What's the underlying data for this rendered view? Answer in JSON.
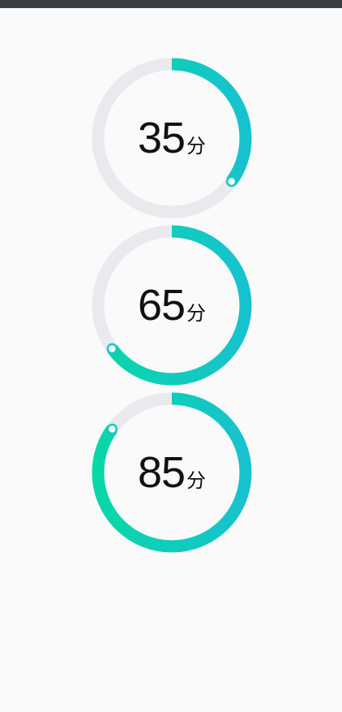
{
  "colors": {
    "track": "#e9e9ee",
    "gradient_start": "#08d7a7",
    "gradient_end": "#17c2cf",
    "knob_border": "#17c7c6"
  },
  "gauges": [
    {
      "value": "35",
      "unit": "分",
      "progress": 0.35
    },
    {
      "value": "65",
      "unit": "分",
      "progress": 0.65
    },
    {
      "value": "85",
      "unit": "分",
      "progress": 0.85
    }
  ]
}
